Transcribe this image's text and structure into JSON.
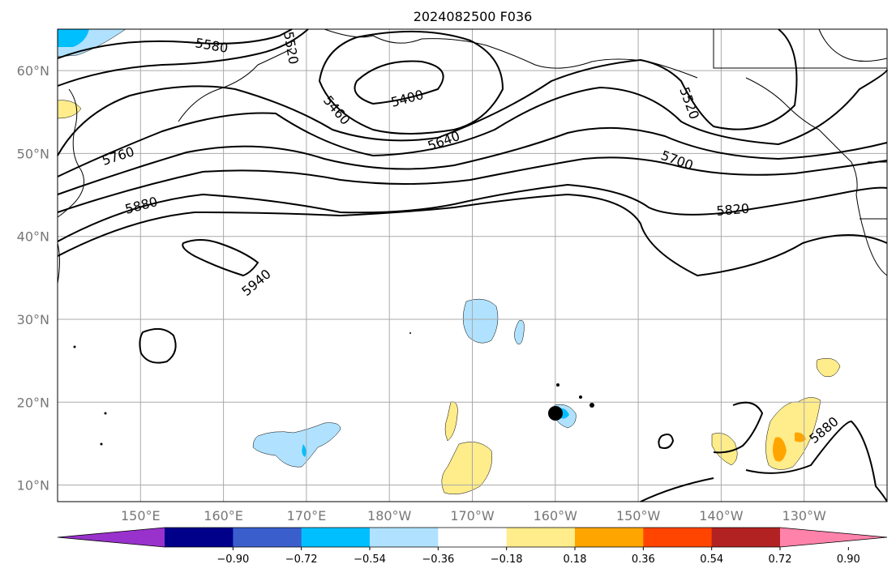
{
  "title": "2024082500 F036",
  "lat_labels": [
    {
      "text": "10°N",
      "lat": 10
    },
    {
      "text": "20°N",
      "lat": 20
    },
    {
      "text": "30°N",
      "lat": 30
    },
    {
      "text": "40°N",
      "lat": 40
    },
    {
      "text": "50°N",
      "lat": 50
    },
    {
      "text": "60°N",
      "lat": 60
    }
  ],
  "lon_labels": [
    {
      "text": "150°E",
      "lon": 150
    },
    {
      "text": "160°E",
      "lon": 160
    },
    {
      "text": "170°E",
      "lon": 170
    },
    {
      "text": "180°W",
      "lon": 180
    },
    {
      "text": "170°W",
      "lon": 190
    },
    {
      "text": "160°W",
      "lon": 200
    },
    {
      "text": "150°W",
      "lon": 210
    },
    {
      "text": "140°W",
      "lon": 220
    },
    {
      "text": "130°W",
      "lon": 230
    }
  ],
  "contour_labels": [
    "5580",
    "5520",
    "5400",
    "5460",
    "5640",
    "5760",
    "5880",
    "5940",
    "5520",
    "5700",
    "5820",
    "5880"
  ],
  "colorbar": {
    "colors": [
      "#9932cc",
      "#00008b",
      "#3a5fcd",
      "#00bfff",
      "#b0e2ff",
      "#ffffff",
      "#ffec8b",
      "#ffa500",
      "#ff4500",
      "#b22222",
      "#ff82ab"
    ],
    "labels": [
      "−0.90",
      "−0.72",
      "−0.54",
      "−0.36",
      "−0.18",
      "0.18",
      "0.36",
      "0.54",
      "0.72",
      "0.90"
    ]
  }
}
